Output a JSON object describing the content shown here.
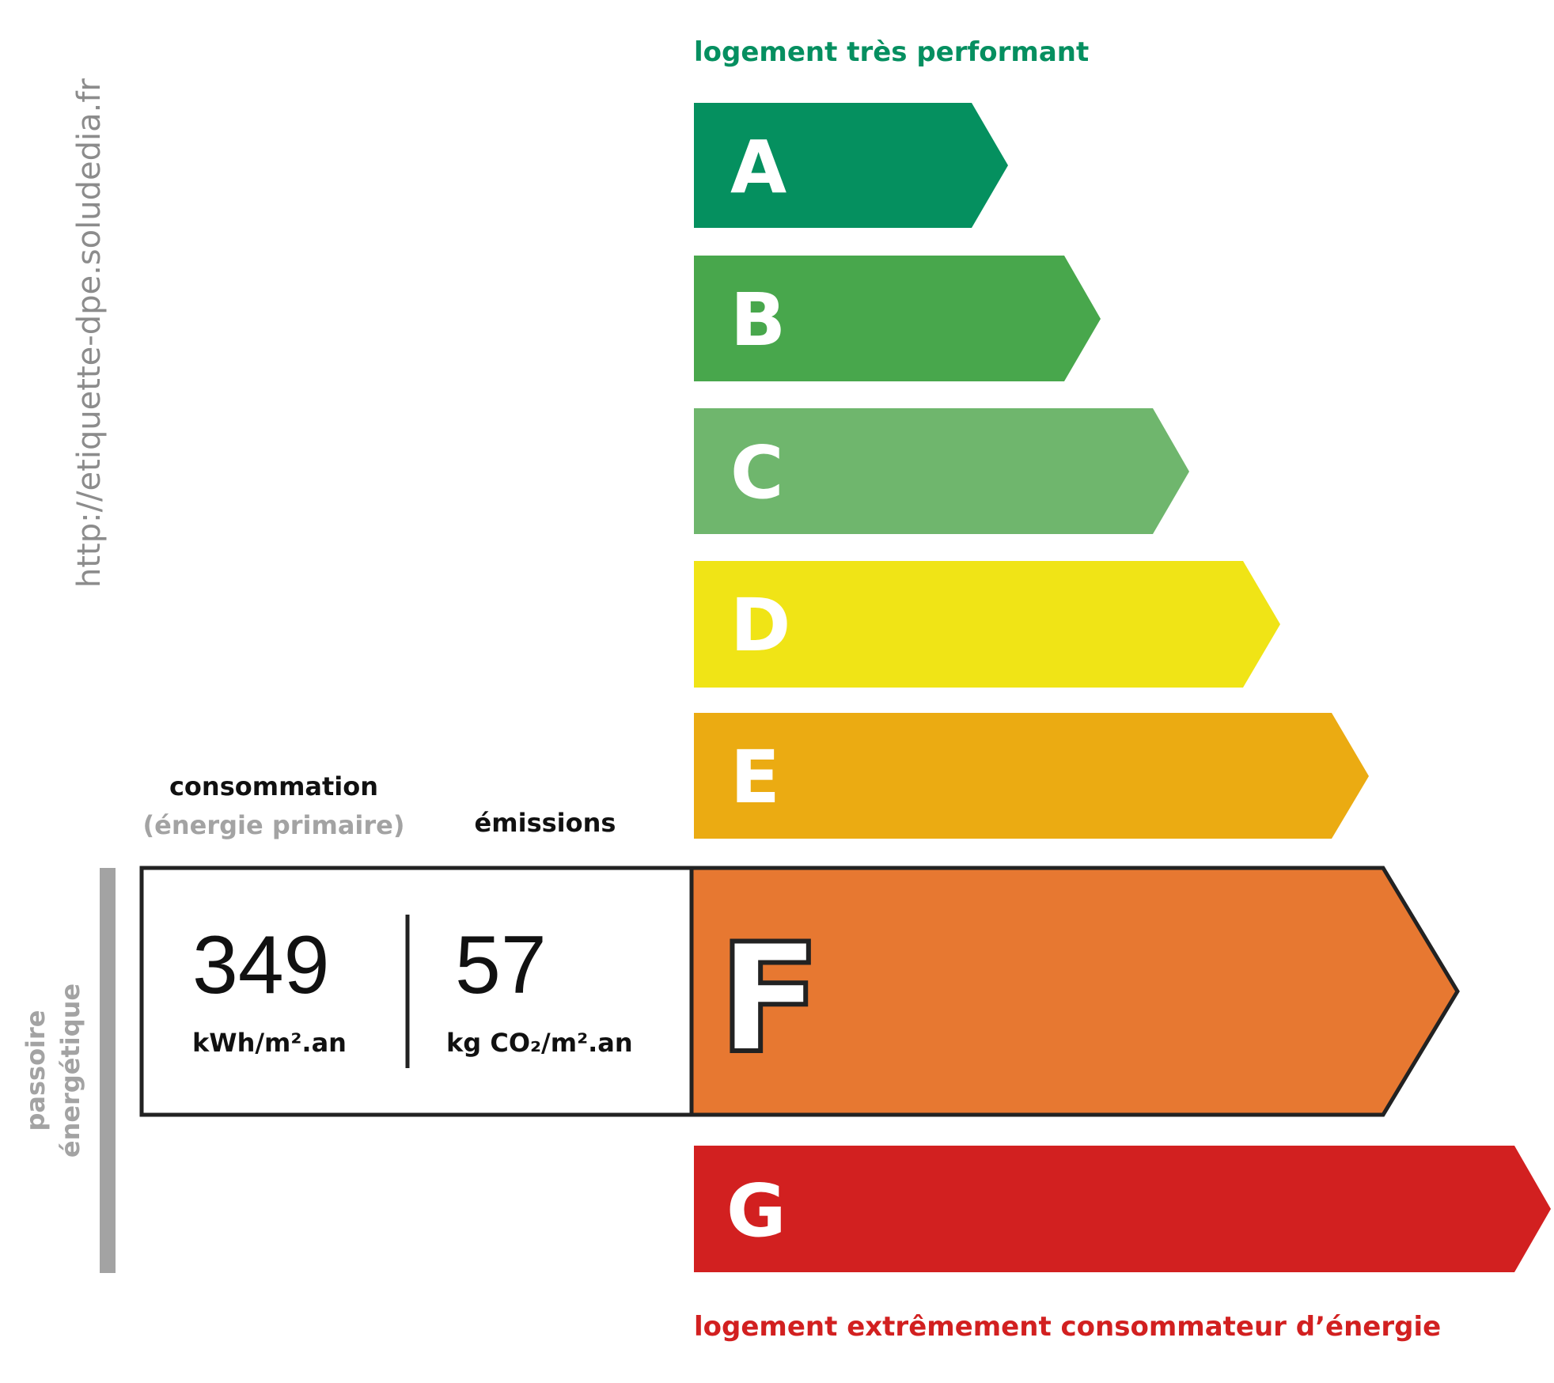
{
  "url_watermark": "http://etiquette-dpe.soludedia.fr",
  "top_label": "logement très performant",
  "bottom_label": "logement extrêmement consommateur d’énergie",
  "side_label": {
    "line1": "passoire",
    "line2": "énergétique"
  },
  "headers": {
    "consumption": "consommation",
    "consumption_sub": "(énergie primaire)",
    "emissions": "émissions"
  },
  "current": {
    "class": "F",
    "consumption_value": "349",
    "consumption_unit": "kWh/m².an",
    "emissions_value": "57",
    "emissions_unit": "kg CO₂/m².an"
  },
  "classes": [
    {
      "letter": "A",
      "color": "#05905f"
    },
    {
      "letter": "B",
      "color": "#48a74c"
    },
    {
      "letter": "C",
      "color": "#6fb66d"
    },
    {
      "letter": "D",
      "color": "#f0e416"
    },
    {
      "letter": "E",
      "color": "#ebab12"
    },
    {
      "letter": "F",
      "color": "#e77831"
    },
    {
      "letter": "G",
      "color": "#d22020"
    }
  ],
  "colors": {
    "top_label": "#058f60",
    "bottom_label": "#d22020",
    "watermark": "#8c8c8c",
    "side_label": "#a3a3a3"
  }
}
